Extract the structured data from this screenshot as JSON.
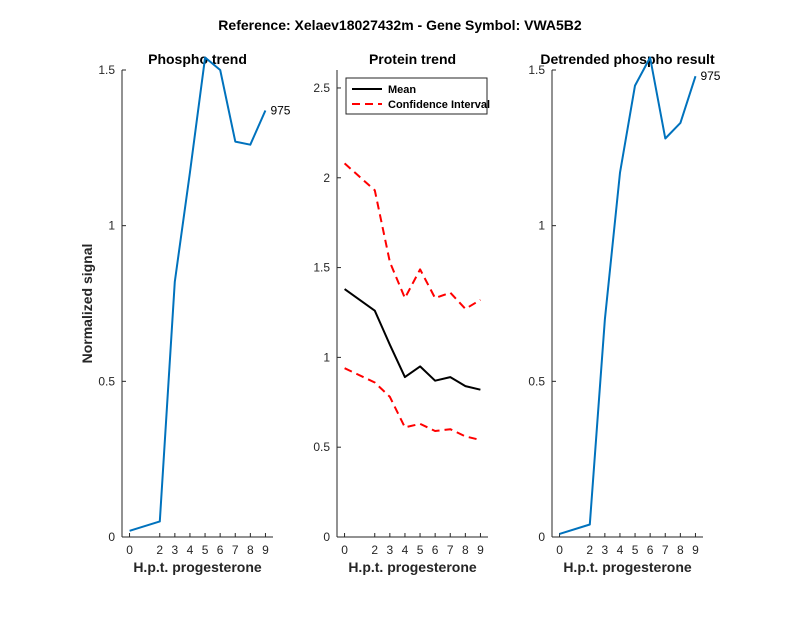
{
  "figure": {
    "title": "Reference:  Xelaev18027432m - Gene Symbol:  VWA5B2"
  },
  "chart_data": [
    {
      "type": "line",
      "title": "Phospho trend",
      "xlabel": "H.p.t. progesterone",
      "ylabel": "Normalized signal",
      "xlim": [
        -0.5,
        9.5
      ],
      "ylim": [
        0,
        1.5
      ],
      "xticks": [
        0,
        2,
        3,
        4,
        5,
        6,
        7,
        8,
        9
      ],
      "yticks": [
        0,
        0.5,
        1,
        1.5
      ],
      "ytick_labels": [
        "0",
        "0.5",
        "1",
        "1.5"
      ],
      "series": [
        {
          "name": "phospho",
          "color": "#0072BD",
          "x": [
            0,
            2,
            3,
            4,
            5,
            6,
            7,
            8,
            9
          ],
          "y": [
            0.02,
            0.05,
            0.82,
            1.17,
            1.54,
            1.5,
            1.27,
            1.26,
            1.37
          ]
        }
      ],
      "annotation": {
        "text": "975",
        "x": 9,
        "y": 1.37
      }
    },
    {
      "type": "line",
      "title": "Protein trend",
      "xlabel": "H.p.t. progesterone",
      "ylabel": "",
      "xlim": [
        -0.5,
        9.5
      ],
      "ylim": [
        0,
        2.6
      ],
      "xticks": [
        0,
        2,
        3,
        4,
        5,
        6,
        7,
        8,
        9
      ],
      "yticks": [
        0,
        0.5,
        1,
        1.5,
        2,
        2.5
      ],
      "ytick_labels": [
        "0",
        "0.5",
        "1",
        "1.5",
        "2",
        "2.5"
      ],
      "legend": {
        "position": "top-left",
        "entries": [
          "Mean",
          "Confidence Interval"
        ]
      },
      "series": [
        {
          "name": "Mean",
          "color": "#000000",
          "dash": "solid",
          "x": [
            0,
            2,
            3,
            4,
            5,
            6,
            7,
            8,
            9
          ],
          "y": [
            1.38,
            1.26,
            1.07,
            0.89,
            0.95,
            0.87,
            0.89,
            0.84,
            0.82
          ]
        },
        {
          "name": "Confidence Interval",
          "color": "#FF0000",
          "dash": "dashed",
          "x": [
            0,
            2,
            3,
            4,
            5,
            6,
            7,
            8,
            9
          ],
          "y": [
            2.08,
            1.93,
            1.53,
            1.33,
            1.49,
            1.33,
            1.36,
            1.27,
            1.32
          ]
        },
        {
          "name": "Confidence Interval (lower)",
          "color": "#FF0000",
          "dash": "dashed",
          "x": [
            0,
            2,
            3,
            4,
            5,
            6,
            7,
            8,
            9
          ],
          "y": [
            0.94,
            0.86,
            0.78,
            0.61,
            0.63,
            0.59,
            0.6,
            0.56,
            0.54
          ]
        }
      ]
    },
    {
      "type": "line",
      "title": "Detrended phospho result",
      "xlabel": "H.p.t. progesterone",
      "ylabel": "",
      "xlim": [
        -0.5,
        9.5
      ],
      "ylim": [
        0,
        1.5
      ],
      "xticks": [
        0,
        2,
        3,
        4,
        5,
        6,
        7,
        8,
        9
      ],
      "yticks": [
        0,
        0.5,
        1,
        1.5
      ],
      "ytick_labels": [
        "0",
        "0.5",
        "1",
        "1.5"
      ],
      "series": [
        {
          "name": "detrended",
          "color": "#0072BD",
          "x": [
            0,
            2,
            3,
            4,
            5,
            6,
            7,
            8,
            9
          ],
          "y": [
            0.01,
            0.04,
            0.7,
            1.17,
            1.45,
            1.54,
            1.28,
            1.33,
            1.48
          ]
        }
      ],
      "annotation": {
        "text": "975",
        "x": 9,
        "y": 1.48
      }
    }
  ]
}
